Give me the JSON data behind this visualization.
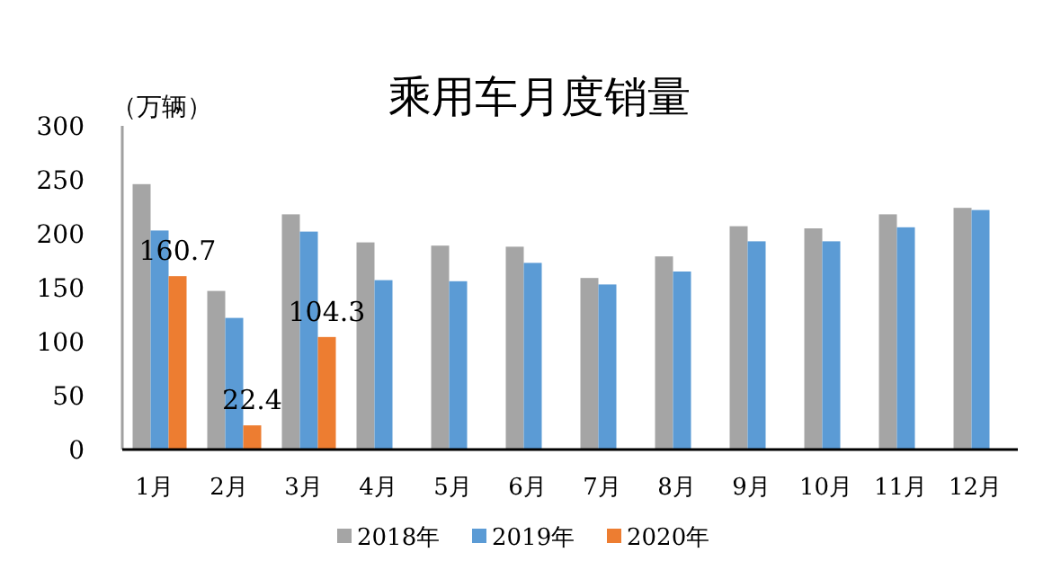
{
  "chart_data": {
    "type": "bar",
    "title": "乘用车月度销量",
    "ylabel": "（万辆）",
    "categories": [
      "1月",
      "2月",
      "3月",
      "4月",
      "5月",
      "6月",
      "7月",
      "8月",
      "9月",
      "10月",
      "11月",
      "12月"
    ],
    "series": [
      {
        "name": "2018年",
        "color": "#a5a5a5",
        "values": [
          246,
          147,
          218,
          192,
          189,
          188,
          159,
          179,
          207,
          205,
          218,
          224
        ]
      },
      {
        "name": "2019年",
        "color": "#5b9bd5",
        "values": [
          203,
          122,
          202,
          157,
          156,
          173,
          153,
          165,
          193,
          193,
          206,
          222
        ]
      },
      {
        "name": "2020年",
        "color": "#ed7d31",
        "values": [
          160.7,
          22.4,
          104.3,
          null,
          null,
          null,
          null,
          null,
          null,
          null,
          null,
          null
        ],
        "value_labels": [
          "160.7",
          "22.4",
          "104.3",
          null,
          null,
          null,
          null,
          null,
          null,
          null,
          null,
          null
        ]
      }
    ],
    "ylim": [
      0,
      300
    ],
    "yticks": [
      0,
      50,
      100,
      150,
      200,
      250,
      300
    ],
    "grid": false,
    "legend": "bottom"
  }
}
